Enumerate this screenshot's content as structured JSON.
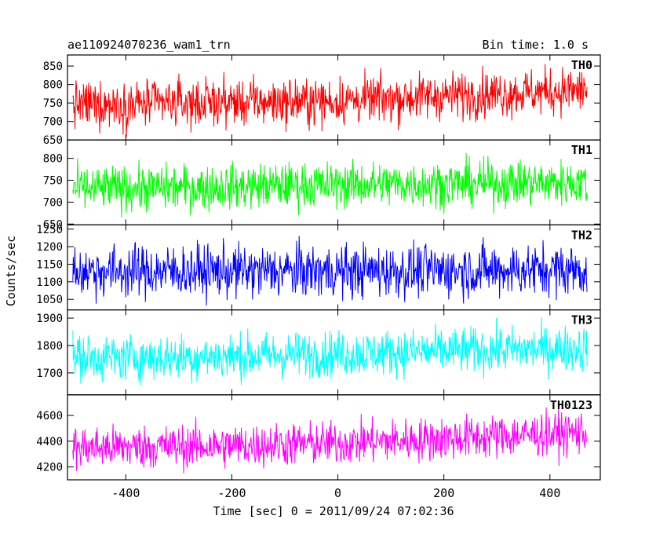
{
  "header": {
    "title": "ae110924070236_wam1_trn",
    "bin_time": "Bin time: 1.0 s"
  },
  "chart_data": {
    "type": "line",
    "xlabel": "Time [sec] 0 = 2011/09/24 07:02:36",
    "ylabel": "Counts/sec",
    "xlim": [
      -510,
      495
    ],
    "x_ticks": [
      -400,
      -200,
      0,
      200,
      400
    ],
    "x_range": [
      -500,
      470
    ],
    "bin_time_s": 1.0,
    "panels": [
      {
        "name": "TH0",
        "color": "#ff0000",
        "ylim": [
          650,
          880
        ],
        "y_ticks": [
          650,
          700,
          750,
          800,
          850
        ],
        "trend": [
          [
            -500,
            745
          ],
          [
            -200,
            752
          ],
          [
            0,
            755
          ],
          [
            200,
            770
          ],
          [
            470,
            785
          ]
        ],
        "noise": 32
      },
      {
        "name": "TH1",
        "color": "#00ff00",
        "ylim": [
          648,
          842
        ],
        "y_ticks": [
          650,
          700,
          750,
          800
        ],
        "trend": [
          [
            -500,
            730
          ],
          [
            -200,
            735
          ],
          [
            0,
            740
          ],
          [
            200,
            742
          ],
          [
            470,
            745
          ]
        ],
        "noise": 26
      },
      {
        "name": "TH2",
        "color": "#0000ff",
        "ylim": [
          1020,
          1262
        ],
        "y_ticks": [
          1050,
          1100,
          1150,
          1200,
          1250
        ],
        "trend": [
          [
            -500,
            1130
          ],
          [
            -200,
            1130
          ],
          [
            0,
            1130
          ],
          [
            200,
            1132
          ],
          [
            470,
            1135
          ]
        ],
        "noise": 38
      },
      {
        "name": "TH3",
        "color": "#00ffff",
        "ylim": [
          1620,
          1930
        ],
        "y_ticks": [
          1700,
          1800,
          1900
        ],
        "trend": [
          [
            -500,
            1755
          ],
          [
            -200,
            1760
          ],
          [
            0,
            1770
          ],
          [
            200,
            1780
          ],
          [
            470,
            1790
          ]
        ],
        "noise": 42
      },
      {
        "name": "TH0123",
        "color": "#ff00ff",
        "ylim": [
          4100,
          4760
        ],
        "y_ticks": [
          4200,
          4400,
          4600
        ],
        "trend": [
          [
            -500,
            4350
          ],
          [
            -200,
            4365
          ],
          [
            0,
            4385
          ],
          [
            200,
            4420
          ],
          [
            470,
            4470
          ]
        ],
        "noise": 85
      }
    ]
  }
}
